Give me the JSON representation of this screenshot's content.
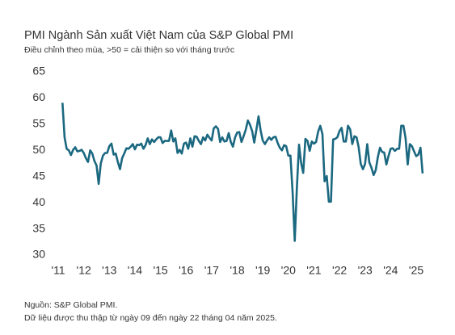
{
  "chart_data": {
    "type": "line",
    "title": "PMI Ngành Sản xuất Việt Nam của S&P Global PMI",
    "subtitle": "Điều chỉnh theo mùa, >50 = cải thiện so với tháng trước",
    "source": "Nguồn: S&P Global PMI.",
    "note": "Dữ liệu được thu thập từ ngày 09 đến ngày 22 tháng 04 năm 2025.",
    "categories": [
      "'11",
      null,
      null,
      null,
      null,
      null,
      null,
      null,
      null,
      null,
      null,
      null,
      "'12",
      null,
      null,
      null,
      null,
      null,
      null,
      null,
      null,
      null,
      null,
      null,
      "'13",
      null,
      null,
      null,
      null,
      null,
      null,
      null,
      null,
      null,
      null,
      null,
      "'14",
      null,
      null,
      null,
      null,
      null,
      null,
      null,
      null,
      null,
      null,
      null,
      "'15",
      null,
      null,
      null,
      null,
      null,
      null,
      null,
      null,
      null,
      null,
      null,
      "'16",
      null,
      null,
      null,
      null,
      null,
      null,
      null,
      null,
      null,
      null,
      null,
      "'17",
      null,
      null,
      null,
      null,
      null,
      null,
      null,
      null,
      null,
      null,
      null,
      "'18",
      null,
      null,
      null,
      null,
      null,
      null,
      null,
      null,
      null,
      null,
      null,
      "'19",
      null,
      null,
      null,
      null,
      null,
      null,
      null,
      null,
      null,
      null,
      null,
      "'20",
      null,
      null,
      null,
      null,
      null,
      null,
      null,
      null,
      null,
      null,
      null,
      "'21",
      null,
      null,
      null,
      null,
      null,
      null,
      null,
      null,
      null,
      null,
      null,
      "'22",
      null,
      null,
      null,
      null,
      null,
      null,
      null,
      null,
      null,
      null,
      null,
      "'23",
      null,
      null,
      null,
      null,
      null,
      null,
      null,
      null,
      null,
      null,
      null,
      "'24",
      null,
      null,
      null,
      null,
      null,
      null,
      null,
      null,
      null,
      null,
      null,
      "'25",
      null,
      null,
      null
    ],
    "series": [
      {
        "color": "#1b6880",
        "values": [
          null,
          null,
          59.1,
          52.5,
          50.3,
          50.0,
          49.1,
          50.1,
          50.6,
          49.8,
          49.9,
          50.1,
          49.5,
          48.5,
          47.8,
          50.0,
          49.4,
          48.0,
          47.1,
          43.6,
          47.5,
          49.0,
          49.5,
          49.5,
          50.8,
          51.3,
          49.2,
          49.4,
          47.8,
          46.4,
          48.5,
          49.4,
          50.4,
          50.3,
          50.7,
          51.2,
          50.2,
          51.1,
          51.0,
          51.3,
          50.3,
          51.0,
          52.3,
          51.2,
          52.1,
          51.6,
          52.1,
          52.5,
          52.5,
          51.4,
          51.8,
          51.8,
          51.8,
          53.8,
          51.7,
          52.3,
          49.5,
          50.1,
          49.4,
          51.3,
          51.5,
          50.3,
          52.3,
          50.7,
          52.7,
          52.6,
          51.8,
          51.2,
          52.5,
          51.9,
          53.0,
          52.4,
          51.9,
          54.2,
          54.6,
          54.1,
          51.6,
          52.5,
          51.7,
          51.8,
          53.3,
          51.6,
          50.7,
          52.5,
          53.4,
          53.5,
          51.6,
          52.7,
          53.9,
          55.7,
          54.9,
          53.7,
          51.5,
          53.9,
          56.5,
          53.8,
          51.9,
          51.2,
          51.9,
          52.5,
          52.0,
          52.5,
          52.6,
          51.4,
          50.5,
          50.0,
          51.0,
          50.8,
          49.0,
          49.0,
          41.9,
          32.7,
          42.7,
          51.1,
          47.6,
          45.7,
          52.2,
          51.8,
          49.9,
          51.7,
          51.3,
          51.6,
          53.6,
          54.7,
          53.1,
          44.1,
          45.1,
          40.2,
          40.2,
          52.1,
          52.2,
          52.5,
          53.7,
          54.3,
          51.7,
          51.7,
          54.7,
          54.0,
          51.2,
          52.7,
          52.5,
          50.6,
          47.4,
          46.4,
          47.4,
          51.2,
          47.7,
          46.7,
          45.3,
          46.2,
          48.7,
          50.5,
          49.7,
          49.6,
          47.3,
          48.9,
          50.3,
          50.4,
          49.9,
          50.3,
          50.3,
          54.7,
          54.7,
          52.4,
          47.3,
          51.2,
          50.8,
          49.8,
          48.9,
          49.2,
          50.5,
          45.6
        ]
      }
    ],
    "ylim": [
      30,
      65
    ],
    "yticks": [
      30,
      35,
      40,
      45,
      50,
      55,
      60,
      65
    ],
    "grid": false
  }
}
